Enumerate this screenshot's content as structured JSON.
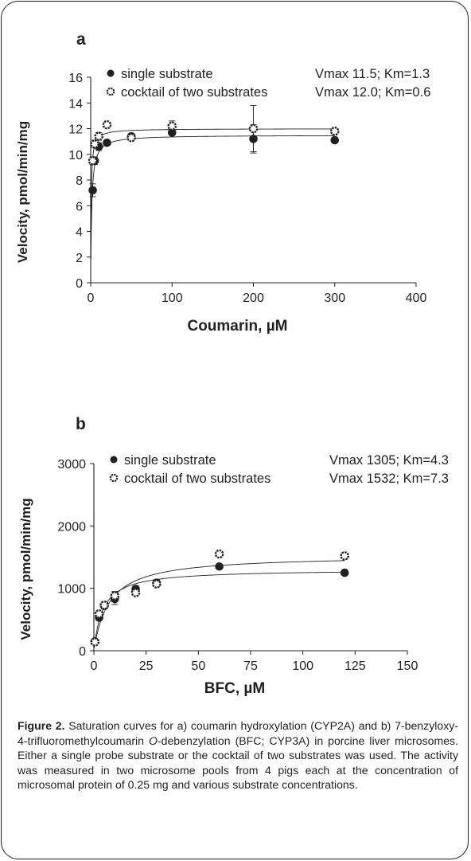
{
  "chart_data": [
    {
      "panel_label": "a",
      "type": "scatter",
      "xlabel": "Coumarin, µM",
      "ylabel": "Velocity, pmol/min/mg",
      "xlim": [
        0,
        400
      ],
      "ylim": [
        0,
        16
      ],
      "xticks": [
        0,
        100,
        200,
        300,
        400
      ],
      "yticks": [
        0,
        2,
        4,
        6,
        8,
        10,
        12,
        14,
        16
      ],
      "legend_position": "top",
      "series": [
        {
          "name": "single substrate",
          "annotation": "Vmax 11.5; Km=1.3",
          "marker": "filled",
          "fit": {
            "vmax": 11.5,
            "km": 1.3
          },
          "x": [
            2.5,
            5,
            10,
            20,
            50,
            100,
            200,
            300
          ],
          "y": [
            7.2,
            9.5,
            10.6,
            10.9,
            11.4,
            11.7,
            11.2,
            11.1
          ],
          "err": [
            0.5,
            0.3,
            0.3,
            0.2,
            0.2,
            0.2,
            1.1,
            0.1
          ]
        },
        {
          "name": "cocktail of two substrates",
          "annotation": "Vmax 12.0; Km=0.6",
          "marker": "open",
          "fit": {
            "vmax": 12.0,
            "km": 0.6
          },
          "x": [
            2.5,
            5,
            10,
            20,
            50,
            100,
            200,
            300
          ],
          "y": [
            9.5,
            10.8,
            11.4,
            12.3,
            11.3,
            12.2,
            12.0,
            11.8
          ],
          "err": [
            0.3,
            0.3,
            0.3,
            0.2,
            0.2,
            0.4,
            1.8,
            0.2
          ]
        }
      ]
    },
    {
      "panel_label": "b",
      "type": "scatter",
      "xlabel": "BFC, µM",
      "ylabel": "Velocity, pmol/min/mg",
      "xlim": [
        0,
        150
      ],
      "ylim": [
        0,
        3000
      ],
      "xticks": [
        0,
        25,
        50,
        75,
        100,
        125,
        150
      ],
      "yticks": [
        0,
        1000,
        2000,
        3000
      ],
      "legend_position": "top",
      "series": [
        {
          "name": "single substrate",
          "annotation": "Vmax 1305; Km=4.3",
          "marker": "filled",
          "fit": {
            "vmax": 1305,
            "km": 4.3
          },
          "x": [
            0.5,
            2.5,
            5,
            10,
            20,
            30,
            60,
            120
          ],
          "y": [
            150,
            530,
            720,
            830,
            990,
            1090,
            1350,
            1250
          ],
          "err": [
            30,
            40,
            50,
            90,
            50,
            50,
            40,
            30
          ]
        },
        {
          "name": "cocktail of two substrates",
          "annotation": "Vmax 1532; Km=7.3",
          "marker": "open",
          "fit": {
            "vmax": 1532,
            "km": 7.3
          },
          "x": [
            0.5,
            2.5,
            5,
            10,
            20,
            30,
            60,
            120
          ],
          "y": [
            140,
            590,
            730,
            880,
            930,
            1070,
            1550,
            1520
          ],
          "err": [
            30,
            40,
            50,
            70,
            40,
            40,
            40,
            40
          ]
        }
      ]
    }
  ],
  "caption": {
    "label": "Figure 2.",
    "part1": " Saturation curves for a) coumarin hydroxylation (CYP2A) and b) 7-benzyloxy-4-trifluoromethylcoumarin ",
    "italic": "O",
    "part2": "-debenzylation (BFC; CYP3A) in porcine liver microsomes. Either a single probe substrate or the cocktail of two substrates was used. The activity was measured in two microsome pools from 4 pigs each at the concentration of microsomal protein of 0.25 mg and various substrate concentrations."
  }
}
